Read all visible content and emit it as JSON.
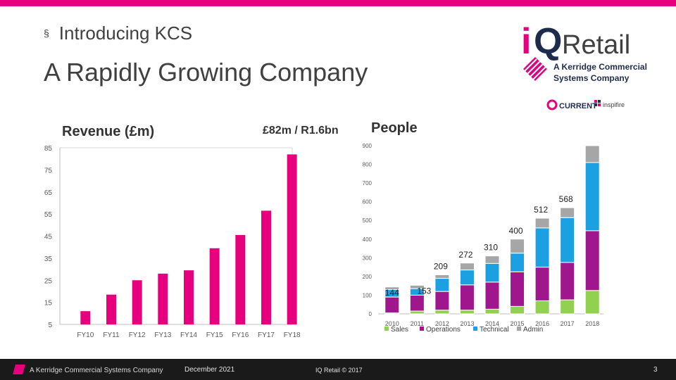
{
  "header": {
    "bullet": "§",
    "subtitle": "Introducing KCS",
    "title": "A Rapidly Growing Company"
  },
  "logo": {
    "brand_i": "i",
    "brand_q": "Q",
    "brand_name": "Retail",
    "tagline_line1": "A Kerridge Commercial",
    "tagline_line2": "Systems Company",
    "partner1": "CURRENT",
    "partner2": "inspifire"
  },
  "colors": {
    "accent": "#e6007e",
    "sales": "#92d050",
    "operations": "#a0168c",
    "technical": "#1ba1e2",
    "admin": "#a6a6a6"
  },
  "chart_data": [
    {
      "type": "bar",
      "title": "Revenue (£m)",
      "annotation": "£82m / R1.6bn",
      "categories": [
        "FY10",
        "FY11",
        "FY12",
        "FY13",
        "FY14",
        "FY15",
        "FY16",
        "FY17",
        "FY18"
      ],
      "values": [
        11,
        18.5,
        25,
        28,
        29.5,
        39.5,
        45.5,
        56.5,
        82
      ],
      "y_ticks": [
        5,
        15,
        25,
        35,
        45,
        55,
        65,
        75,
        85
      ],
      "ylim": [
        5,
        85
      ],
      "color": "#e6007e"
    },
    {
      "type": "bar",
      "stacked": true,
      "title": "People",
      "categories": [
        "2010",
        "2011",
        "2012",
        "2013",
        "2014",
        "2015",
        "2016",
        "2017",
        "2018"
      ],
      "y_ticks": [
        0,
        100,
        200,
        300,
        400,
        500,
        600,
        700,
        800,
        900
      ],
      "ylim": [
        0,
        900
      ],
      "totals": [
        "144",
        "153",
        "209",
        "272",
        "310",
        "400",
        "512",
        "568",
        ""
      ],
      "series": [
        {
          "name": "Sales",
          "values": [
            5,
            15,
            20,
            20,
            25,
            40,
            70,
            75,
            125
          ]
        },
        {
          "name": "Operations",
          "values": [
            85,
            85,
            100,
            135,
            145,
            185,
            180,
            200,
            320
          ]
        },
        {
          "name": "Technical",
          "values": [
            40,
            35,
            70,
            80,
            100,
            100,
            210,
            240,
            365
          ]
        },
        {
          "name": "Admin",
          "values": [
            14,
            18,
            19,
            37,
            40,
            75,
            52,
            53,
            90
          ]
        }
      ],
      "legend": [
        "Sales",
        "Operations",
        "Technical",
        "Admin"
      ]
    }
  ],
  "footer": {
    "brand": "A Kerridge Commercial Systems Company",
    "date": "December 2021",
    "copyright": "IQ Retail © 2017",
    "page": "3"
  }
}
